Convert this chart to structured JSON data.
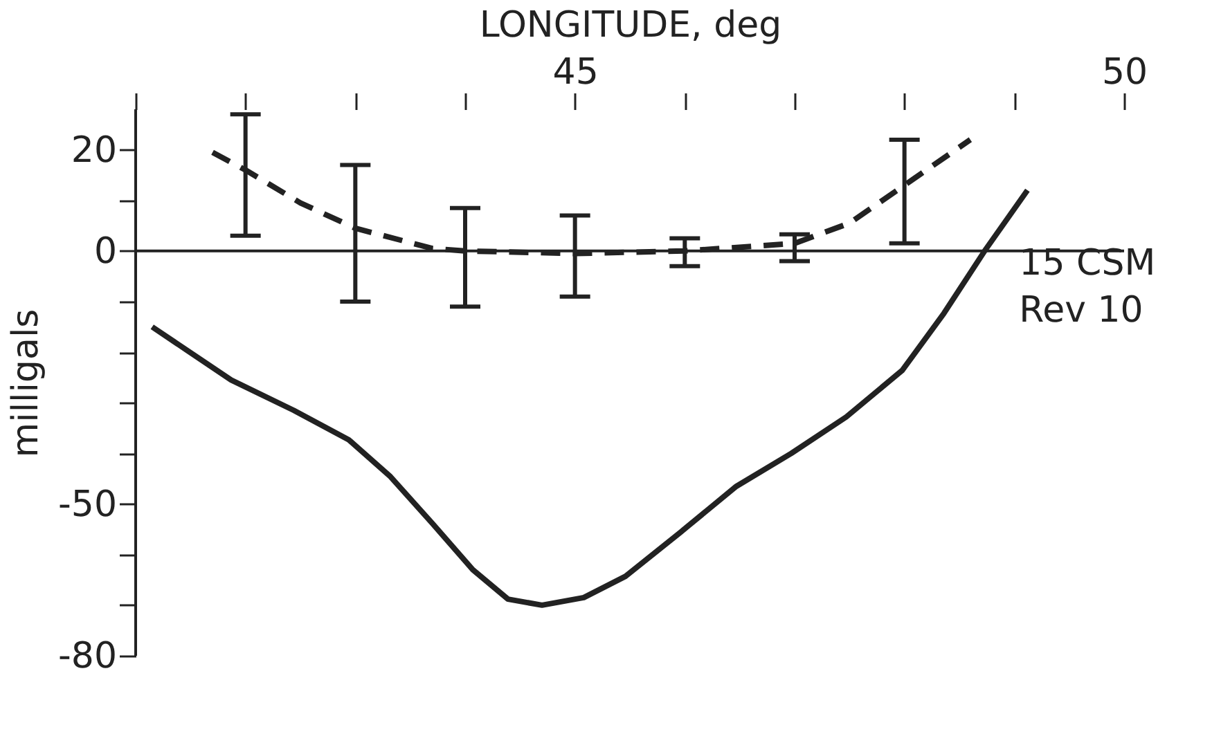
{
  "chart_data": {
    "type": "line",
    "xlabel": "LONGITUDE, deg",
    "ylabel": "milligals",
    "xlim": [
      41,
      50
    ],
    "xticks": [
      {
        "value": 41,
        "label": null
      },
      {
        "value": 42,
        "label": null
      },
      {
        "value": 43,
        "label": null
      },
      {
        "value": 44,
        "label": null
      },
      45,
      {
        "value": 46,
        "label": null
      },
      {
        "value": 47,
        "label": null
      },
      {
        "value": 48,
        "label": null
      },
      {
        "value": 49,
        "label": null
      },
      50
    ],
    "ylim": [
      -80,
      28
    ],
    "yticks": [
      -80,
      {
        "value": -70,
        "label": null
      },
      {
        "value": -60,
        "label": null
      },
      -50,
      {
        "value": -40,
        "label": null
      },
      {
        "value": -30,
        "label": null
      },
      {
        "value": -20,
        "label": null
      },
      {
        "value": -10,
        "label": null
      },
      0,
      {
        "value": 10,
        "label": null
      },
      20
    ],
    "grid": false,
    "ref_lines": [
      {
        "axis": "y",
        "value": 0,
        "color": "#222222"
      }
    ],
    "series": [
      {
        "name": "15 CSM\nRev 10",
        "color": "#222222",
        "line_style": "solid",
        "x": [
          41.15,
          41.87,
          42.44,
          42.94,
          43.32,
          43.7,
          44.07,
          44.39,
          44.7,
          45.08,
          45.46,
          45.96,
          46.47,
          46.97,
          47.47,
          47.98,
          48.36,
          48.73,
          49.12
        ],
        "values": [
          -15,
          -25.5,
          -31.5,
          -37.3,
          -44.6,
          -53.8,
          -63,
          -68.8,
          -70,
          -68.5,
          -64.3,
          -55.6,
          -46.5,
          -40,
          -32.8,
          -23.6,
          -12.3,
          0,
          12
        ]
      },
      {
        "color": "#222222",
        "line_style": "dashed",
        "x": [
          41.7,
          42,
          42.5,
          43,
          43.7,
          44,
          45,
          46,
          47,
          47.5,
          48,
          48.6
        ],
        "values": [
          19.5,
          16,
          9.5,
          4.5,
          0.5,
          0,
          -0.5,
          0,
          1.5,
          5.5,
          13,
          22
        ],
        "errors": [
          null,
          [
            3,
            27
          ],
          null,
          [
            -10,
            17
          ],
          null,
          [
            -11,
            8.5
          ],
          [
            -9,
            7
          ],
          [
            -3,
            2.5
          ],
          [
            -2,
            3.3
          ],
          null,
          [
            1.5,
            22
          ],
          null
        ]
      }
    ]
  }
}
